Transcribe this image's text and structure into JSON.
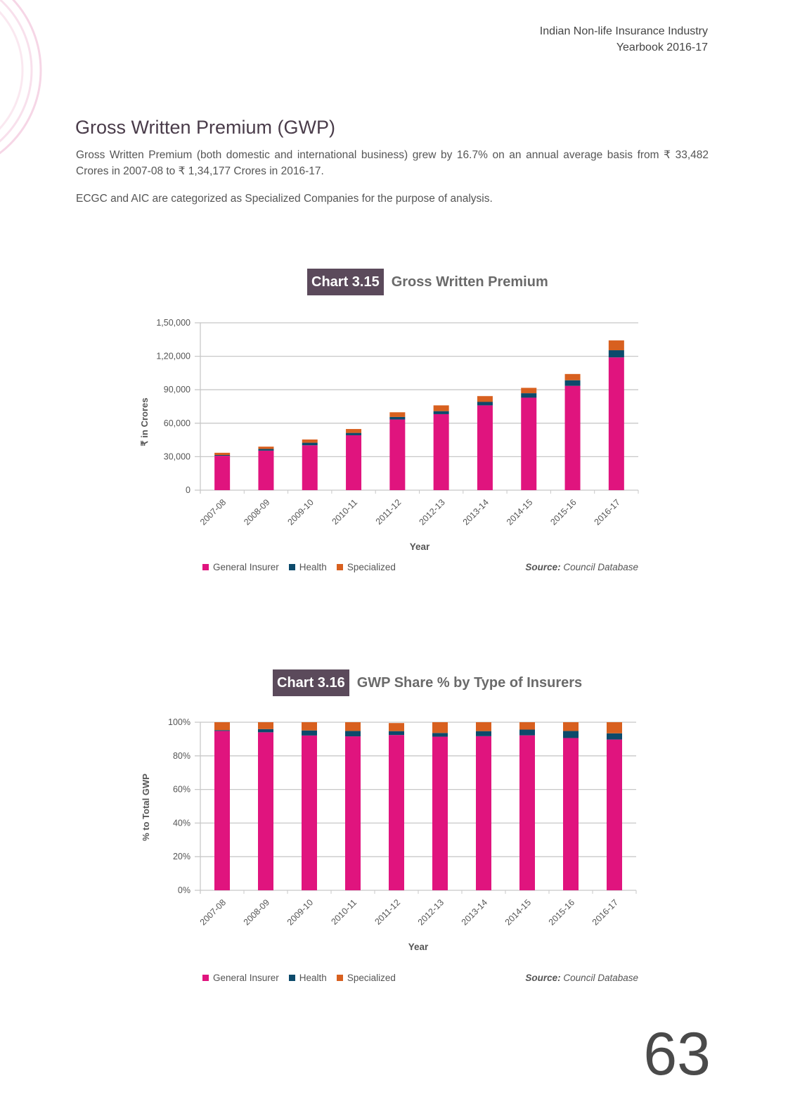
{
  "header": {
    "line1": "Indian Non-life Insurance Industry",
    "line2": "Yearbook 2016-17"
  },
  "section_title": "Gross Written Premium (GWP)",
  "paragraphs": [
    "Gross Written Premium (both domestic and international business) grew by 16.7% on an annual average basis from ₹ 33,482 Crores in 2007-08 to ₹ 1,34,177 Crores in 2016-17.",
    "ECGC and AIC are categorized as Specialized Companies for the purpose of analysis."
  ],
  "page_number": "63",
  "colors": {
    "general": "#e0147e",
    "health": "#0c4a6b",
    "specialized": "#d8601f",
    "title_box": "#5b4a5b"
  },
  "chart_data": [
    {
      "type": "bar",
      "stacked": true,
      "chart_label": "Chart 3.15",
      "title": "Gross Written Premium",
      "xlabel": "Year",
      "ylabel": "₹ in Crores",
      "ylim": [
        0,
        150000
      ],
      "yticks": [
        "0",
        "30,000",
        "60,000",
        "90,000",
        "1,20,000",
        "1,50,000"
      ],
      "ytick_values": [
        0,
        30000,
        60000,
        90000,
        120000,
        150000
      ],
      "grid": true,
      "legend": "bottom-left",
      "source_label": "Source:",
      "source_text": "Council Database",
      "categories": [
        "2007-08",
        "2008-09",
        "2009-10",
        "2010-11",
        "2011-12",
        "2012-13",
        "2013-14",
        "2014-15",
        "2015-16",
        "2016-17"
      ],
      "series": [
        {
          "name": "General Insurer",
          "values": [
            30800,
            35400,
            40200,
            49200,
            63300,
            68100,
            76000,
            82900,
            93500,
            119000
          ]
        },
        {
          "name": "Health",
          "values": [
            700,
            1500,
            2300,
            2100,
            2300,
            2700,
            3100,
            4000,
            5000,
            6400
          ]
        },
        {
          "name": "Specialized",
          "values": [
            2000,
            2100,
            2900,
            3500,
            4200,
            5200,
            5200,
            4800,
            5600,
            8800
          ]
        }
      ]
    },
    {
      "type": "bar",
      "stacked": true,
      "chart_label": "Chart 3.16",
      "title": "GWP Share % by Type of Insurers",
      "xlabel": "Year",
      "ylabel": "% to Total GWP",
      "ylim": [
        0,
        100
      ],
      "yticks": [
        "0%",
        "20%",
        "40%",
        "60%",
        "80%",
        "100%"
      ],
      "ytick_values": [
        0,
        20,
        40,
        60,
        80,
        100
      ],
      "grid": true,
      "legend": "bottom-left",
      "source_label": "Source:",
      "source_text": "Council Database",
      "categories": [
        "2007-08",
        "2008-09",
        "2009-10",
        "2010-11",
        "2011-12",
        "2012-13",
        "2013-14",
        "2014-15",
        "2015-16",
        "2016-17"
      ],
      "series": [
        {
          "name": "General Insurer",
          "values": [
            94.8,
            94.0,
            92.1,
            91.6,
            92.4,
            91.4,
            91.7,
            92.2,
            90.6,
            89.7
          ]
        },
        {
          "name": "Health",
          "values": [
            0.5,
            1.9,
            3.0,
            3.2,
            2.3,
            2.2,
            3.0,
            3.4,
            4.2,
            3.7
          ]
        },
        {
          "name": "Specialized",
          "values": [
            4.7,
            4.1,
            4.9,
            5.2,
            4.8,
            6.4,
            5.3,
            4.4,
            5.2,
            6.6
          ]
        }
      ]
    }
  ]
}
